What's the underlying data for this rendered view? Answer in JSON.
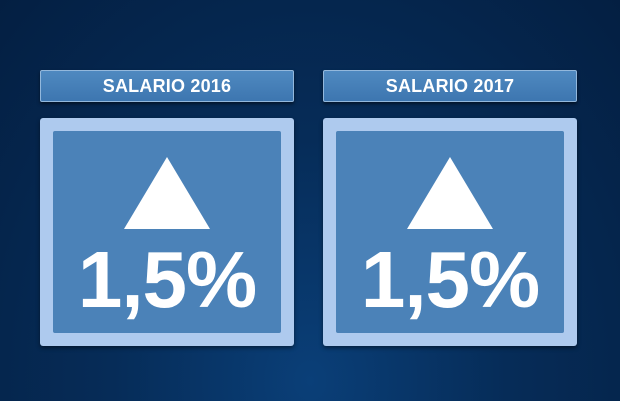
{
  "panels": [
    {
      "label": "SALARIO 2016",
      "icon": "triangle-up-icon",
      "value": "1,5%"
    },
    {
      "label": "SALARIO 2017",
      "icon": "triangle-up-icon",
      "value": "1,5%"
    }
  ],
  "colors": {
    "background": "#062c58",
    "label_bar": "#4582b8",
    "box_border": "#aecaee",
    "box_fill": "#4b82b8",
    "text": "#ffffff"
  }
}
